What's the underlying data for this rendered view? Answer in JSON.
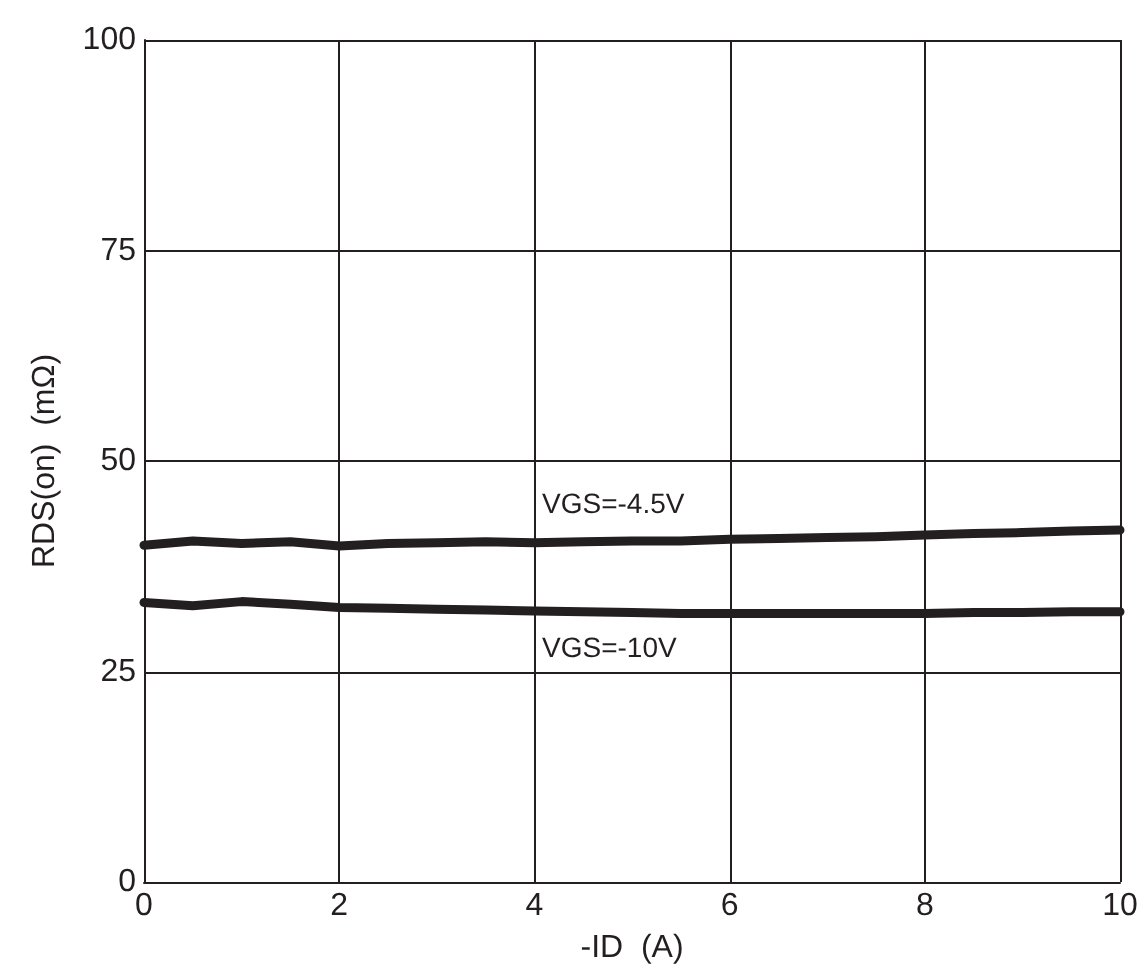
{
  "chart_data": {
    "type": "line",
    "xlabel": "-ID  (A)",
    "ylabel": "RDS(on)  (mΩ)",
    "xlim": [
      0,
      10
    ],
    "xticks": [
      0,
      2,
      4,
      6,
      8,
      10
    ],
    "ylim": [
      0,
      100
    ],
    "yticks": [
      0,
      25,
      50,
      75,
      100
    ],
    "grid": true,
    "legend": false,
    "marker": "none",
    "line_style": "solid",
    "series": [
      {
        "name": "VGS=-4.5V",
        "color": "#231f20",
        "x": [
          0,
          0.5,
          1,
          1.5,
          2,
          2.5,
          3,
          3.5,
          4,
          4.5,
          5,
          5.5,
          6,
          6.5,
          7,
          7.5,
          8,
          8.5,
          9,
          9.5,
          10
        ],
        "values": [
          40,
          40.5,
          40.2,
          40.4,
          39.9,
          40.2,
          40.3,
          40.4,
          40.3,
          40.4,
          40.5,
          40.5,
          40.7,
          40.8,
          40.9,
          41,
          41.2,
          41.4,
          41.5,
          41.7,
          41.8
        ]
      },
      {
        "name": "VGS=-10V",
        "color": "#231f20",
        "x": [
          0,
          0.5,
          1,
          1.5,
          2,
          2.5,
          3,
          3.5,
          4,
          4.5,
          5,
          5.5,
          6,
          6.5,
          7,
          7.5,
          8,
          8.5,
          9,
          9.5,
          10
        ],
        "values": [
          33.2,
          32.8,
          33.3,
          33,
          32.6,
          32.5,
          32.4,
          32.3,
          32.2,
          32.1,
          32,
          31.9,
          31.9,
          31.9,
          31.9,
          31.9,
          31.9,
          32,
          32,
          32.1,
          32.1
        ]
      }
    ]
  }
}
